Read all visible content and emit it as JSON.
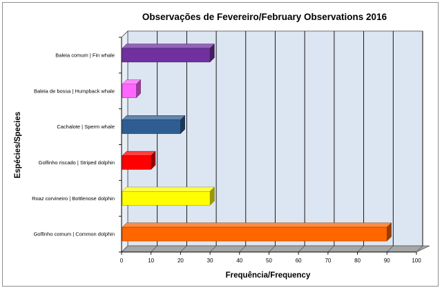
{
  "chart_data": {
    "type": "bar",
    "orientation": "horizontal",
    "three_d": true,
    "title": "Observações de Fevereiro/February Observations 2016",
    "xlabel": "Frequência/Frequency",
    "ylabel": "Espécies/Species",
    "xlim": [
      0,
      100
    ],
    "x_ticks": [
      "0",
      "10",
      "20",
      "30",
      "40",
      "50",
      "60",
      "70",
      "80",
      "90",
      "100"
    ],
    "grid": true,
    "legend": "none",
    "categories": [
      "Baleia comum | Fin whale",
      "Baleia de bossa | Humpback whale",
      "Cachalote | Sperm whale",
      "Golfinho riscado | Striped dolphin",
      "Roaz corvineiro | Bottlenose dolphin",
      "Golfinho comum | Common dolphin"
    ],
    "values": [
      30,
      5,
      20,
      10,
      30,
      90
    ],
    "colors": [
      "#7030a0",
      "#ff66ff",
      "#2e5e91",
      "#ff0000",
      "#ffff00",
      "#ff6600"
    ],
    "wall_color": "#dce6f2",
    "floor_color": "#a6a6a6"
  }
}
